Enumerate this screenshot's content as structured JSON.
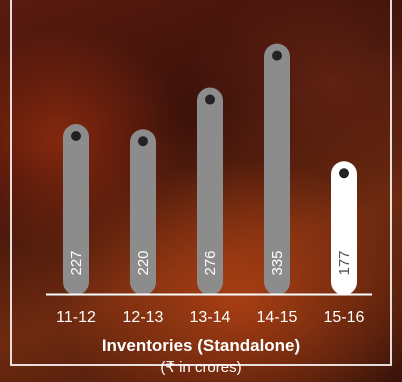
{
  "chart_data": {
    "type": "bar",
    "title": "Inventories (Standalone)",
    "subtitle": "(₹ in crores)",
    "categories": [
      "11-12",
      "12-13",
      "13-14",
      "14-15",
      "15-16"
    ],
    "values": [
      227,
      220,
      276,
      335,
      177
    ],
    "value_labels": [
      "227",
      "220",
      "276",
      "335",
      "177"
    ],
    "ylim": [
      0,
      360
    ],
    "grid": false,
    "legend": "none",
    "colors": {
      "bar": "#8c8c8c",
      "highlight_bar": "#ffffff",
      "dot": "#222222",
      "axis": "#ffffff"
    }
  }
}
